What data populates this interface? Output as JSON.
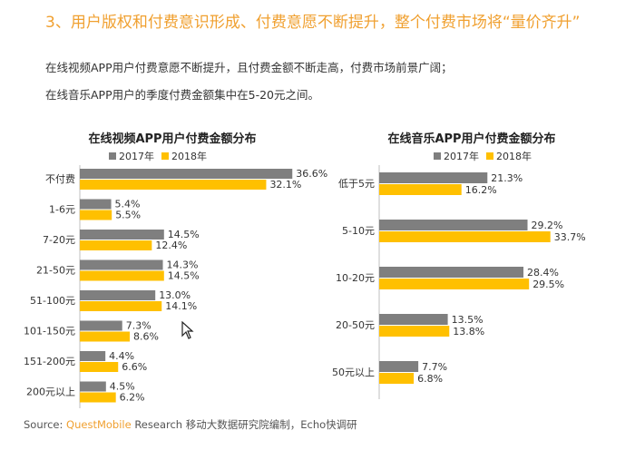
{
  "header": {
    "title": "3、用户版权和付费意识形成、付费意愿不断提升，整个付费市场将“量价齐升”",
    "line1": "在线视频APP用户付费意愿不断提升，且付费金额不断走高，付费市场前景广阔；",
    "line2": "在线音乐APP用户的季度付费金额集中在5-20元之间。"
  },
  "footer": {
    "label": "Source:",
    "brand": "QuestMobile",
    "rest": " Research 移动大数据研究院编制，Echo快调研"
  },
  "colors": {
    "series_2017": "#7f7f7f",
    "series_2018": "#ffc000",
    "title": "#f0a030"
  },
  "chart_data": [
    {
      "type": "bar",
      "orientation": "horizontal",
      "title": "在线视频APP用户付费金额分布",
      "categories": [
        "不付费",
        "1-6元",
        "7-20元",
        "21-50元",
        "51-100元",
        "101-150元",
        "151-200元",
        "200元以上"
      ],
      "series": [
        {
          "name": "2017年",
          "values": [
            36.6,
            5.4,
            14.5,
            14.3,
            13.0,
            7.3,
            4.4,
            4.5
          ],
          "labels": [
            "36.6%",
            "5.4%",
            "14.5%",
            "14.3%",
            "13.0%",
            "7.3%",
            "4.4%",
            "4.5%"
          ]
        },
        {
          "name": "2018年",
          "values": [
            32.1,
            5.5,
            12.4,
            14.5,
            14.1,
            8.6,
            6.6,
            6.2
          ],
          "labels": [
            "32.1%",
            "5.5%",
            "12.4%",
            "14.5%",
            "14.1%",
            "8.6%",
            "6.6%",
            "6.2%"
          ]
        }
      ],
      "legend": "top",
      "grid": false
    },
    {
      "type": "bar",
      "orientation": "horizontal",
      "title": "在线音乐APP用户付费金额分布",
      "categories": [
        "低于5元",
        "5-10元",
        "10-20元",
        "20-50元",
        "50元以上"
      ],
      "series": [
        {
          "name": "2017年",
          "values": [
            21.3,
            29.2,
            28.4,
            13.5,
            7.7
          ],
          "labels": [
            "21.3%",
            "29.2%",
            "28.4%",
            "13.5%",
            "7.7%"
          ]
        },
        {
          "name": "2018年",
          "values": [
            16.2,
            33.7,
            29.5,
            13.8,
            6.8
          ],
          "labels": [
            "16.2%",
            "33.7%",
            "29.5%",
            "13.8%",
            "6.8%"
          ]
        }
      ],
      "legend": "top",
      "grid": false
    }
  ]
}
